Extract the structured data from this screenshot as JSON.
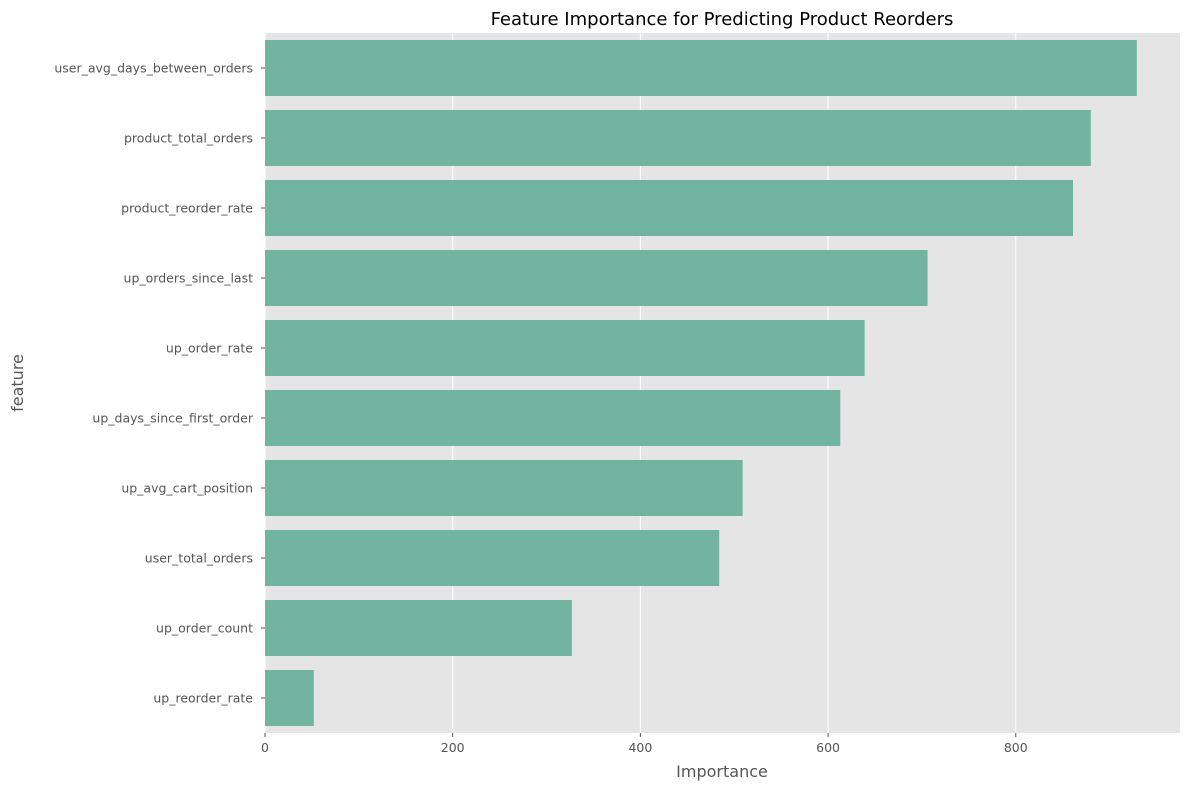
{
  "chart_data": {
    "type": "bar",
    "orientation": "horizontal",
    "title": "Feature Importance for Predicting Product Reorders",
    "xlabel": "Importance",
    "ylabel": "feature",
    "categories": [
      "user_avg_days_between_orders",
      "product_total_orders",
      "product_reorder_rate",
      "up_orders_since_last",
      "up_order_rate",
      "up_days_since_first_order",
      "up_avg_cart_position",
      "user_total_orders",
      "up_order_count",
      "up_reorder_rate"
    ],
    "values": [
      929,
      880,
      861,
      706,
      639,
      613,
      509,
      484,
      327,
      52
    ],
    "xlim": [
      0,
      975
    ],
    "xticks": [
      0,
      200,
      400,
      600,
      800
    ],
    "grid": true,
    "legend": "none",
    "colors": {
      "bar": "#73b4a0",
      "plot_background": "#e5e5e5",
      "grid": "#ffffff"
    }
  }
}
